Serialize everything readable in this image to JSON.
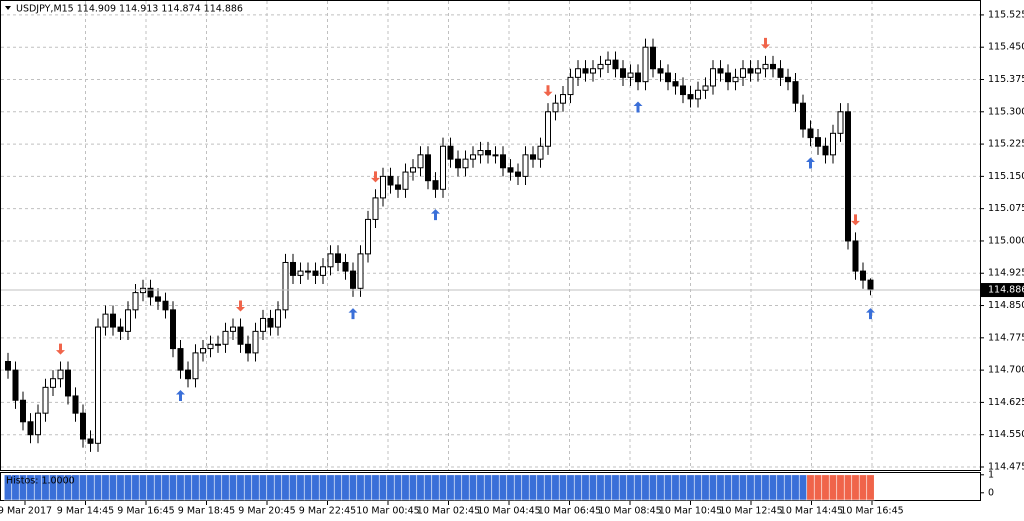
{
  "chart_data": {
    "type": "candlestick",
    "title": "USDJPY,M15  114.909 114.913 114.874 114.886",
    "indicator_label": "Histos: 1.0000",
    "categories": [
      "9 Mar 2017",
      "9 Mar 14:45",
      "9 Mar 16:45",
      "9 Mar 18:45",
      "9 Mar 20:45",
      "9 Mar 22:45",
      "10 Mar 00:45",
      "10 Mar 02:45",
      "10 Mar 04:45",
      "10 Mar 06:45",
      "10 Mar 08:45",
      "10 Mar 10:45",
      "10 Mar 12:45",
      "10 Mar 14:45",
      "10 Mar 16:45"
    ],
    "open": [
      114.72,
      114.7,
      114.63,
      114.58,
      114.55,
      114.6,
      114.66,
      114.68,
      114.7,
      114.64,
      114.6,
      114.54,
      114.53,
      114.8,
      114.83,
      114.8,
      114.79,
      114.84,
      114.88,
      114.89,
      114.87,
      114.86,
      114.84,
      114.75,
      114.7,
      114.68,
      114.74,
      114.75,
      114.76,
      114.76,
      114.79,
      114.8,
      114.76,
      114.74,
      114.79,
      114.82,
      114.8,
      114.84,
      114.95,
      114.92,
      114.93,
      114.93,
      114.92,
      114.94,
      114.97,
      114.95,
      114.93,
      114.89,
      114.97,
      115.05,
      115.1,
      115.15,
      115.13,
      115.12,
      115.16,
      115.17,
      115.2,
      115.14,
      115.12,
      115.22,
      115.19,
      115.17,
      115.19,
      115.2,
      115.21,
      115.2,
      115.2,
      115.17,
      115.16,
      115.15,
      115.2,
      115.19,
      115.22,
      115.3,
      115.32,
      115.34,
      115.38,
      115.4,
      115.39,
      115.4,
      115.41,
      115.42,
      115.4,
      115.38,
      115.39,
      115.37,
      115.45,
      115.4,
      115.39,
      115.37,
      115.36,
      115.34,
      115.33,
      115.35,
      115.36,
      115.4,
      115.39,
      115.37,
      115.38,
      115.4,
      115.39,
      115.4,
      115.41,
      115.4,
      115.38,
      115.37,
      115.32,
      115.26,
      115.24,
      115.22,
      115.2,
      115.25,
      115.3,
      115.0,
      114.93,
      114.909
    ],
    "high": [
      114.74,
      114.72,
      114.65,
      114.6,
      114.62,
      114.68,
      114.7,
      114.72,
      114.72,
      114.66,
      114.62,
      114.56,
      114.82,
      114.85,
      114.85,
      114.82,
      114.86,
      114.9,
      114.91,
      114.91,
      114.89,
      114.88,
      114.86,
      114.77,
      114.72,
      114.76,
      114.77,
      114.78,
      114.78,
      114.81,
      114.82,
      114.82,
      114.78,
      114.81,
      114.84,
      114.84,
      114.86,
      114.97,
      114.97,
      114.95,
      114.95,
      114.95,
      114.96,
      114.99,
      114.99,
      114.97,
      114.95,
      114.99,
      115.07,
      115.12,
      115.17,
      115.17,
      115.15,
      115.18,
      115.19,
      115.22,
      115.22,
      115.16,
      115.24,
      115.24,
      115.21,
      115.21,
      115.22,
      115.23,
      115.23,
      115.22,
      115.22,
      115.19,
      115.18,
      115.22,
      115.22,
      115.24,
      115.32,
      115.34,
      115.36,
      115.4,
      115.42,
      115.42,
      115.42,
      115.43,
      115.44,
      115.44,
      115.42,
      115.41,
      115.41,
      115.47,
      115.47,
      115.42,
      115.41,
      115.39,
      115.38,
      115.36,
      115.37,
      115.38,
      115.42,
      115.42,
      115.41,
      115.4,
      115.42,
      115.42,
      115.42,
      115.43,
      115.43,
      115.42,
      115.4,
      115.39,
      115.34,
      115.28,
      115.26,
      115.24,
      115.27,
      115.32,
      115.32,
      115.02,
      114.95,
      114.913
    ],
    "low": [
      114.68,
      114.61,
      114.56,
      114.53,
      114.53,
      114.58,
      114.64,
      114.66,
      114.62,
      114.58,
      114.52,
      114.51,
      114.51,
      114.78,
      114.78,
      114.77,
      114.77,
      114.82,
      114.86,
      114.85,
      114.84,
      114.82,
      114.73,
      114.68,
      114.66,
      114.66,
      114.72,
      114.73,
      114.74,
      114.74,
      114.77,
      114.74,
      114.72,
      114.72,
      114.77,
      114.78,
      114.78,
      114.82,
      114.9,
      114.9,
      114.91,
      114.9,
      114.9,
      114.92,
      114.93,
      114.91,
      114.87,
      114.87,
      114.95,
      115.03,
      115.08,
      115.11,
      115.1,
      115.1,
      115.14,
      115.15,
      115.12,
      115.1,
      115.1,
      115.17,
      115.15,
      115.15,
      115.17,
      115.18,
      115.18,
      115.18,
      115.15,
      115.14,
      115.13,
      115.13,
      115.17,
      115.17,
      115.2,
      115.28,
      115.3,
      115.32,
      115.36,
      115.37,
      115.37,
      115.38,
      115.39,
      115.38,
      115.36,
      115.36,
      115.35,
      115.35,
      115.38,
      115.37,
      115.35,
      115.34,
      115.32,
      115.31,
      115.31,
      115.33,
      115.34,
      115.37,
      115.35,
      115.35,
      115.36,
      115.37,
      115.37,
      115.38,
      115.38,
      115.36,
      115.35,
      115.3,
      115.24,
      115.22,
      115.2,
      115.18,
      115.18,
      115.23,
      114.98,
      114.91,
      114.889,
      114.874
    ],
    "close": [
      114.7,
      114.63,
      114.58,
      114.55,
      114.6,
      114.66,
      114.68,
      114.7,
      114.64,
      114.6,
      114.54,
      114.53,
      114.8,
      114.83,
      114.8,
      114.79,
      114.84,
      114.88,
      114.89,
      114.87,
      114.86,
      114.84,
      114.75,
      114.7,
      114.68,
      114.74,
      114.75,
      114.76,
      114.76,
      114.79,
      114.8,
      114.76,
      114.74,
      114.79,
      114.82,
      114.8,
      114.84,
      114.95,
      114.92,
      114.93,
      114.93,
      114.92,
      114.94,
      114.97,
      114.95,
      114.93,
      114.89,
      114.97,
      115.05,
      115.1,
      115.15,
      115.13,
      115.12,
      115.16,
      115.17,
      115.2,
      115.14,
      115.12,
      115.22,
      115.19,
      115.17,
      115.19,
      115.2,
      115.21,
      115.2,
      115.2,
      115.17,
      115.16,
      115.15,
      115.2,
      115.19,
      115.22,
      115.3,
      115.32,
      115.34,
      115.38,
      115.4,
      115.39,
      115.4,
      115.41,
      115.42,
      115.4,
      115.38,
      115.39,
      115.37,
      115.45,
      115.4,
      115.39,
      115.37,
      115.36,
      115.34,
      115.33,
      115.35,
      115.36,
      115.4,
      115.39,
      115.37,
      115.38,
      115.4,
      115.39,
      115.4,
      115.41,
      115.4,
      115.38,
      115.37,
      115.32,
      115.26,
      115.24,
      115.22,
      115.2,
      115.25,
      115.3,
      115.0,
      114.93,
      114.909,
      114.886
    ],
    "signals": [
      {
        "x": 7,
        "y": 114.75,
        "dir": "down"
      },
      {
        "x": 31,
        "y": 114.85,
        "dir": "down"
      },
      {
        "x": 49,
        "y": 115.15,
        "dir": "down"
      },
      {
        "x": 72,
        "y": 115.35,
        "dir": "down"
      },
      {
        "x": 101,
        "y": 115.46,
        "dir": "down"
      },
      {
        "x": 113,
        "y": 115.05,
        "dir": "down"
      },
      {
        "x": 23,
        "y": 114.64,
        "dir": "up"
      },
      {
        "x": 46,
        "y": 114.83,
        "dir": "up"
      },
      {
        "x": 57,
        "y": 115.06,
        "dir": "up"
      },
      {
        "x": 84,
        "y": 115.31,
        "dir": "up"
      },
      {
        "x": 107,
        "y": 115.18,
        "dir": "up"
      },
      {
        "x": 115,
        "y": 114.83,
        "dir": "up"
      }
    ],
    "up_color": "#3a6fd8",
    "down_color": "#f0644a",
    "current_price": 114.886,
    "ylim": [
      114.468,
      115.555
    ],
    "yticks": [
      115.525,
      {
        "value": 115.45,
        "label": "115.450"
      },
      115.375,
      {
        "value": 115.3,
        "label": "115.300"
      },
      115.225,
      {
        "value": 115.15,
        "label": "115.150"
      },
      115.075,
      {
        "value": 115,
        "label": "115.000"
      },
      114.925,
      {
        "value": 114.85,
        "label": "114.850"
      },
      114.775,
      {
        "value": 114.7,
        "label": "114.700"
      },
      114.625,
      {
        "value": 114.55,
        "label": "114.550"
      },
      114.475
    ],
    "grid": true,
    "indicator": {
      "ylim": [
        -0.4,
        1.1
      ],
      "yticks": [
        1,
        0
      ],
      "series": [
        {
          "color": "#3a6fd8",
          "values": [
            1,
            1,
            1,
            1,
            1,
            1,
            1,
            1,
            1,
            1,
            1,
            1,
            1,
            1,
            1,
            1,
            1,
            1,
            1,
            1,
            1,
            1,
            1,
            1,
            1,
            1,
            1,
            1,
            1,
            1,
            1,
            1,
            1,
            1,
            1,
            1,
            1,
            1,
            1,
            1,
            1,
            1,
            1,
            1,
            1,
            1,
            1,
            1,
            1,
            1,
            1,
            1,
            1,
            1,
            1,
            1,
            1,
            1,
            1,
            1,
            1,
            1,
            1,
            1,
            1,
            1,
            1,
            1,
            1,
            1,
            1,
            1,
            1,
            1,
            1,
            1,
            1,
            1,
            1,
            1,
            1,
            1,
            1,
            1,
            1,
            1,
            1,
            1,
            1,
            1,
            1,
            1,
            1,
            1,
            1,
            1,
            1,
            1,
            1,
            1,
            1,
            1,
            1,
            1,
            1,
            1,
            1,
            null,
            null,
            null,
            null,
            null,
            null,
            null,
            null,
            null
          ]
        },
        {
          "color": "#f0644a",
          "values": [
            null,
            null,
            null,
            null,
            null,
            null,
            null,
            null,
            null,
            null,
            null,
            null,
            null,
            null,
            null,
            null,
            null,
            null,
            null,
            null,
            null,
            null,
            null,
            null,
            null,
            null,
            null,
            null,
            null,
            null,
            null,
            null,
            null,
            null,
            null,
            null,
            null,
            null,
            null,
            null,
            null,
            null,
            null,
            null,
            null,
            null,
            null,
            null,
            null,
            null,
            null,
            null,
            null,
            null,
            null,
            null,
            null,
            null,
            null,
            null,
            null,
            null,
            null,
            null,
            null,
            null,
            null,
            null,
            null,
            null,
            null,
            null,
            null,
            null,
            null,
            null,
            null,
            null,
            null,
            null,
            null,
            null,
            null,
            null,
            null,
            null,
            null,
            null,
            null,
            null,
            null,
            null,
            null,
            null,
            null,
            null,
            null,
            null,
            null,
            null,
            null,
            null,
            null,
            null,
            null,
            null,
            null,
            1,
            1,
            1,
            1,
            1,
            1,
            1,
            1,
            1
          ]
        }
      ]
    }
  }
}
